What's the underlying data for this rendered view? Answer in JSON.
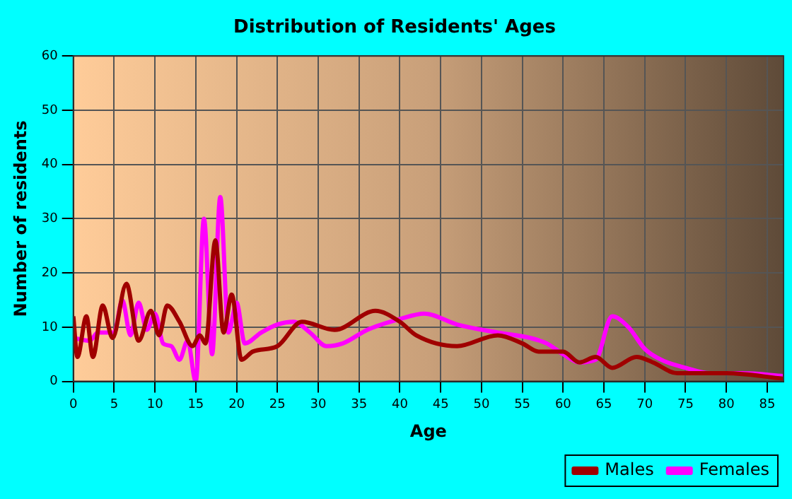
{
  "chart_data": {
    "type": "line",
    "title": "Distribution of Residents' Ages",
    "xlabel": "Age",
    "ylabel": "Number of residents",
    "xlim": [
      0,
      87
    ],
    "xticks": [
      0,
      5,
      10,
      15,
      20,
      25,
      30,
      35,
      40,
      45,
      50,
      55,
      60,
      65,
      70,
      75,
      80,
      85
    ],
    "ylim": [
      0,
      60
    ],
    "yticks": [
      0,
      10,
      20,
      30,
      40,
      50,
      60
    ],
    "grid": true,
    "legend": "bottom right",
    "marker": "none",
    "line_style": "solid",
    "series": [
      {
        "name": "Males",
        "color": "#a00000",
        "x": [
          0,
          0.5,
          1.6,
          2.4,
          3.6,
          4.8,
          6.5,
          8,
          9.5,
          10.5,
          11.5,
          13,
          14.6,
          15.5,
          16.2,
          17.4,
          18.4,
          19.4,
          20.6,
          22,
          25,
          28,
          32,
          37,
          40,
          42,
          47,
          52,
          55,
          57,
          60,
          62,
          64,
          66,
          69,
          71,
          74,
          80,
          87
        ],
        "values": [
          12,
          4.5,
          12,
          4.5,
          14,
          8,
          18,
          7.5,
          13,
          8.5,
          14,
          11,
          6.5,
          8.5,
          7,
          26,
          9,
          16,
          4,
          5.5,
          6.5,
          11,
          9.5,
          13,
          11,
          8.5,
          6.5,
          8.5,
          7,
          5.5,
          5.5,
          3.5,
          4.5,
          2.5,
          4.5,
          3.5,
          1.5,
          1.5,
          0.5
        ]
      },
      {
        "name": "Females",
        "color": "#ff00ff",
        "x": [
          0,
          2,
          3,
          5,
          6,
          7,
          8,
          9,
          10,
          11,
          12,
          13,
          14,
          15,
          16,
          17,
          18,
          19,
          20,
          21,
          23,
          25,
          27,
          29,
          31,
          33,
          36,
          40,
          43,
          47,
          52,
          56,
          58,
          60,
          62,
          64,
          66,
          68,
          70,
          72,
          75,
          78,
          82,
          87
        ],
        "values": [
          8,
          7.5,
          9,
          9,
          15,
          8.5,
          14.5,
          9.5,
          12.5,
          7,
          6.5,
          4,
          7.5,
          0,
          30,
          5,
          34,
          9,
          14.5,
          7,
          9,
          10.5,
          11,
          9,
          6.5,
          7,
          9.5,
          11.5,
          12.5,
          10.5,
          9,
          8,
          7,
          5,
          3.5,
          4,
          12,
          10,
          6,
          4,
          2.5,
          1.5,
          1.5,
          1
        ]
      }
    ]
  }
}
